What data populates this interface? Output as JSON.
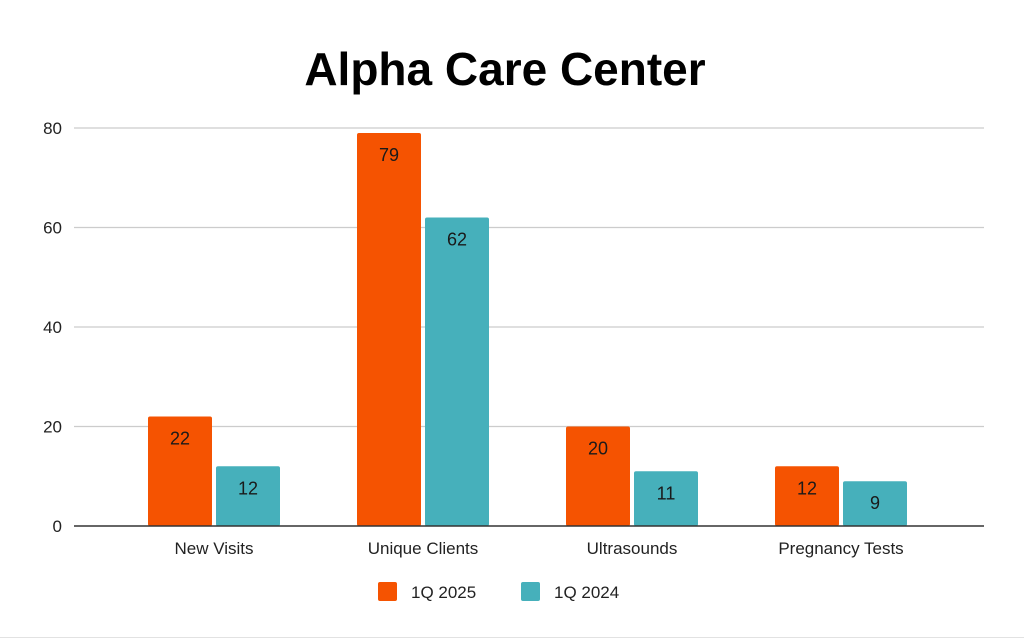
{
  "chart_data": {
    "type": "bar",
    "title": "Alpha Care Center",
    "categories": [
      "New Visits",
      "Unique Clients",
      "Ultrasounds",
      "Pregnancy Tests"
    ],
    "series": [
      {
        "name": "1Q 2025",
        "values": [
          22,
          79,
          20,
          12
        ],
        "color": "#f55301"
      },
      {
        "name": "1Q 2024",
        "values": [
          12,
          62,
          11,
          9
        ],
        "color": "#46b0bb"
      }
    ],
    "ylim": [
      0,
      80
    ],
    "yticks": [
      0,
      20,
      40,
      60,
      80
    ],
    "grid": true,
    "legend_position": "bottom",
    "data_labels": true
  }
}
